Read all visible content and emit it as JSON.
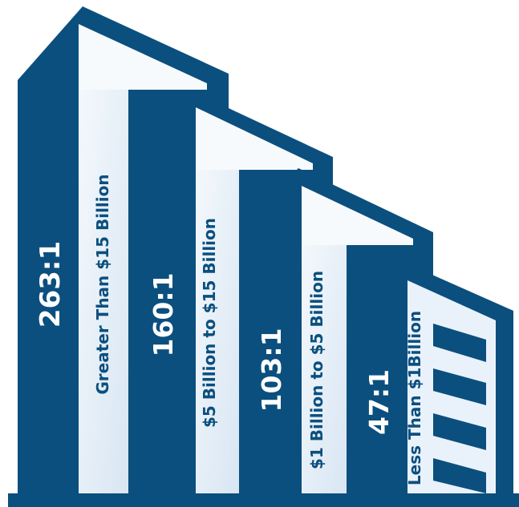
{
  "chart_data": {
    "type": "bar",
    "categories": [
      "Greater Than $15 Billion",
      "$5 Billion to $15 Billion",
      "$1 Billion to $5 Billion",
      "Less Than $1Billion"
    ],
    "series": [
      {
        "values": [
          263,
          160,
          103,
          47
        ]
      }
    ],
    "value_labels": [
      "263:1",
      "160:1",
      "103:1",
      "47:1"
    ]
  },
  "colors": {
    "building_dark": "#0b4f7e",
    "building_light": "#e9f2fa"
  }
}
